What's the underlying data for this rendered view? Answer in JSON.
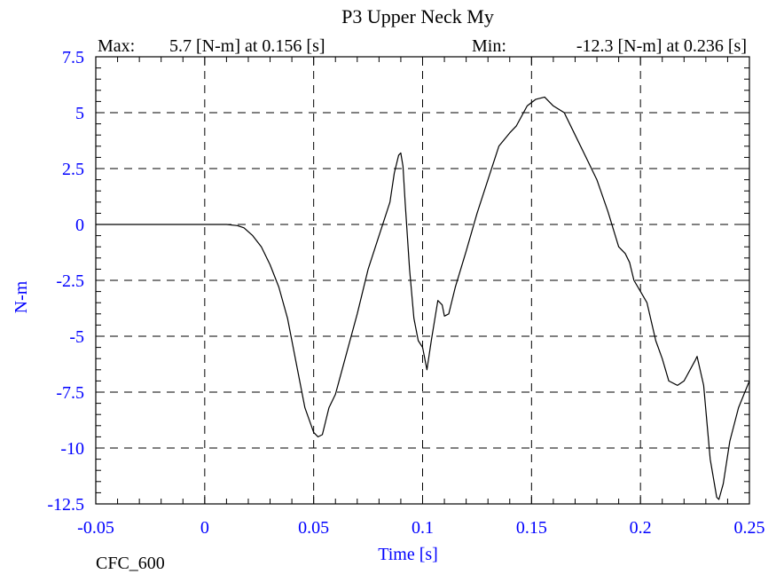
{
  "chart_data": {
    "type": "line",
    "title": "P3 Upper Neck My",
    "xlabel": "Time [s]",
    "ylabel": "N-m",
    "xlim": [
      -0.05,
      0.25
    ],
    "ylim": [
      -12.5,
      7.5
    ],
    "xticks": [
      -0.05,
      0,
      0.05,
      0.1,
      0.15,
      0.2,
      0.25
    ],
    "xtick_labels": [
      "-0.05",
      "0",
      "0.05",
      "0.1",
      "0.15",
      "0.2",
      "0.25"
    ],
    "yticks": [
      7.5,
      5,
      2.5,
      0,
      -2.5,
      -5,
      -7.5,
      -10,
      -12.5
    ],
    "ytick_labels": [
      "7.5",
      "5",
      "2.5",
      "0",
      "-2.5",
      "-5",
      "-7.5",
      "-10",
      "-12.5"
    ],
    "grid": "dashed",
    "stats": {
      "max_label": "Max:",
      "max_text": "5.7 [N-m] at 0.156 [s]",
      "min_label": "Min:",
      "min_text": "-12.3 [N-m] at 0.236 [s]"
    },
    "filter_label": "CFC_600",
    "series": [
      {
        "x": [
          -0.05,
          0.0,
          0.01,
          0.015,
          0.018,
          0.022,
          0.026,
          0.03,
          0.034,
          0.038,
          0.042,
          0.046,
          0.05,
          0.052,
          0.054,
          0.057,
          0.06,
          0.065,
          0.07,
          0.075,
          0.08,
          0.085,
          0.087,
          0.089,
          0.09,
          0.091,
          0.092,
          0.094,
          0.096,
          0.098,
          0.1,
          0.102,
          0.104,
          0.107,
          0.109,
          0.11,
          0.112,
          0.115,
          0.12,
          0.125,
          0.13,
          0.135,
          0.14,
          0.143,
          0.148,
          0.152,
          0.156,
          0.16,
          0.165,
          0.17,
          0.175,
          0.18,
          0.185,
          0.19,
          0.193,
          0.195,
          0.197,
          0.2,
          0.203,
          0.207,
          0.21,
          0.213,
          0.217,
          0.22,
          0.225,
          0.226,
          0.229,
          0.232,
          0.235,
          0.236,
          0.238,
          0.241,
          0.245,
          0.25
        ],
        "y": [
          0.0,
          0.0,
          0.0,
          -0.05,
          -0.15,
          -0.5,
          -1.0,
          -1.8,
          -2.8,
          -4.2,
          -6.2,
          -8.2,
          -9.3,
          -9.5,
          -9.4,
          -8.2,
          -7.6,
          -5.8,
          -4.0,
          -2.0,
          -0.5,
          1.0,
          2.3,
          3.1,
          3.2,
          2.6,
          1.0,
          -2.0,
          -4.2,
          -5.2,
          -5.5,
          -6.5,
          -5.2,
          -3.4,
          -3.6,
          -4.1,
          -4.0,
          -2.8,
          -1.2,
          0.5,
          2.0,
          3.5,
          4.1,
          4.4,
          5.3,
          5.6,
          5.7,
          5.3,
          5.0,
          4.0,
          3.0,
          2.0,
          0.6,
          -1.0,
          -1.3,
          -1.7,
          -2.5,
          -3.0,
          -3.5,
          -5.2,
          -6.0,
          -7.0,
          -7.2,
          -7.0,
          -6.1,
          -5.9,
          -7.2,
          -10.5,
          -12.2,
          -12.3,
          -11.6,
          -9.7,
          -8.2,
          -7.0
        ]
      }
    ]
  }
}
